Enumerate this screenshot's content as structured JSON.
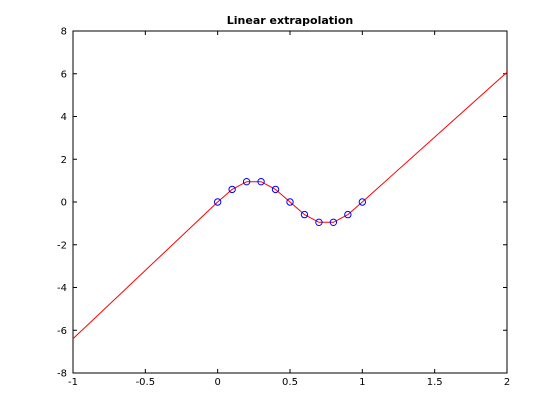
{
  "chart_data": {
    "type": "line",
    "title": "Linear extrapolation",
    "xlabel": "",
    "ylabel": "",
    "xlim": [
      -1,
      2
    ],
    "ylim": [
      -8,
      8
    ],
    "xticks": [
      -1,
      -0.5,
      0,
      0.5,
      1,
      1.5,
      2
    ],
    "xtick_labels": [
      "-1",
      "-0.5",
      "0",
      "0.5",
      "1",
      "1.5",
      "2"
    ],
    "yticks": [
      -8,
      -6,
      -4,
      -2,
      0,
      2,
      4,
      6,
      8
    ],
    "ytick_labels": [
      "-8",
      "-6",
      "-4",
      "-2",
      "0",
      "2",
      "4",
      "6",
      "8"
    ],
    "grid": false,
    "series": [
      {
        "kind": "line",
        "color": "#ff0000",
        "x": [
          -1,
          0,
          0.1,
          0.2,
          0.3,
          0.4,
          0.5,
          0.6,
          0.7,
          0.8,
          0.9,
          1,
          2
        ],
        "y": [
          -6.4,
          0,
          0.59,
          0.95,
          0.95,
          0.59,
          0,
          -0.59,
          -0.95,
          -0.95,
          -0.59,
          0,
          6.07
        ]
      },
      {
        "kind": "markers",
        "marker": "circle",
        "color": "#0000ff",
        "x": [
          0,
          0.1,
          0.2,
          0.3,
          0.4,
          0.5,
          0.6,
          0.7,
          0.8,
          0.9,
          1
        ],
        "y": [
          0,
          0.59,
          0.95,
          0.95,
          0.59,
          0,
          -0.59,
          -0.95,
          -0.95,
          -0.59,
          0
        ]
      }
    ]
  }
}
